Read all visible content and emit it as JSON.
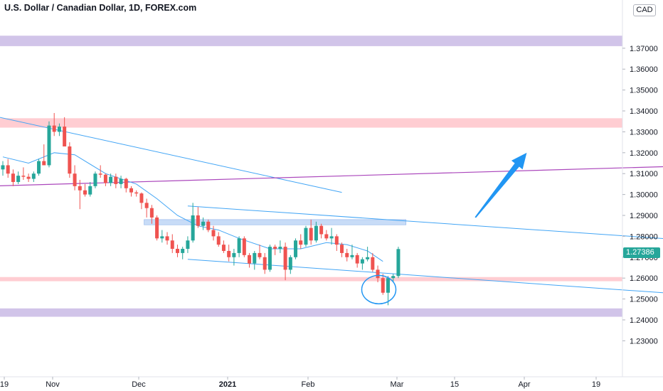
{
  "header": {
    "title": "U.S. Dollar / Canadian Dollar, 1D, FOREX.com"
  },
  "currency_badge": "CAD",
  "last_price_label": "1.27386",
  "colors": {
    "up": "#26a69a",
    "down": "#ef5350",
    "purple_zone": "#d1c4e9",
    "red_zone": "#ffcdd2",
    "blue_zone": "#c8dcf7",
    "trendline": "#42a5f5",
    "purple_line": "#ab47bc",
    "arrow": "#2196f3"
  },
  "chart_data": {
    "type": "candlestick",
    "title": "U.S. Dollar / Canadian Dollar, 1D, FOREX.com",
    "y_ticks": [
      "1.37000",
      "1.36000",
      "1.35000",
      "1.34000",
      "1.33000",
      "1.32000",
      "1.31000",
      "1.30000",
      "1.29000",
      "1.28000",
      "1.27000",
      "1.26000",
      "1.25000",
      "1.24000",
      "1.23000"
    ],
    "x_ticks": [
      {
        "label": "19",
        "bold": false
      },
      {
        "label": "Nov",
        "bold": false
      },
      {
        "label": "Dec",
        "bold": false
      },
      {
        "label": "2021",
        "bold": true
      },
      {
        "label": "Feb",
        "bold": false
      },
      {
        "label": "Mar",
        "bold": false
      },
      {
        "label": "15",
        "bold": false
      },
      {
        "label": "Apr",
        "bold": false
      },
      {
        "label": "19",
        "bold": false
      }
    ],
    "ylim": [
      1.224,
      1.3873
    ],
    "last_price": 1.27386,
    "zones": [
      {
        "kind": "purple",
        "from": 1.371,
        "to": 1.376
      },
      {
        "kind": "red",
        "from": 1.332,
        "to": 1.3365
      },
      {
        "kind": "blue",
        "from": 1.2855,
        "to": 1.288
      },
      {
        "kind": "red",
        "from": 1.2585,
        "to": 1.2605
      },
      {
        "kind": "purple",
        "from": 1.2415,
        "to": 1.2455
      }
    ],
    "candles": [
      [
        1.312,
        1.316,
        1.309,
        1.314
      ],
      [
        1.314,
        1.317,
        1.308,
        1.31
      ],
      [
        1.31,
        1.312,
        1.304,
        1.306
      ],
      [
        1.306,
        1.311,
        1.305,
        1.309
      ],
      [
        1.309,
        1.313,
        1.307,
        1.3085
      ],
      [
        1.3085,
        1.31,
        1.306,
        1.3075
      ],
      [
        1.3075,
        1.311,
        1.306,
        1.31
      ],
      [
        1.31,
        1.317,
        1.309,
        1.316
      ],
      [
        1.316,
        1.324,
        1.315,
        1.314
      ],
      [
        1.314,
        1.335,
        1.313,
        1.333
      ],
      [
        1.333,
        1.339,
        1.328,
        1.33
      ],
      [
        1.33,
        1.334,
        1.328,
        1.3325
      ],
      [
        1.3325,
        1.337,
        1.323,
        1.323
      ],
      [
        1.323,
        1.325,
        1.308,
        1.31
      ],
      [
        1.31,
        1.314,
        1.302,
        1.304
      ],
      [
        1.304,
        1.307,
        1.293,
        1.302
      ],
      [
        1.302,
        1.305,
        1.299,
        1.3
      ],
      [
        1.3,
        1.306,
        1.299,
        1.304
      ],
      [
        1.304,
        1.311,
        1.303,
        1.31
      ],
      [
        1.31,
        1.314,
        1.308,
        1.3095
      ],
      [
        1.3095,
        1.31,
        1.304,
        1.3055
      ],
      [
        1.3055,
        1.31,
        1.304,
        1.3085
      ],
      [
        1.3085,
        1.31,
        1.303,
        1.305
      ],
      [
        1.305,
        1.309,
        1.303,
        1.3075
      ],
      [
        1.3075,
        1.308,
        1.301,
        1.303
      ],
      [
        1.303,
        1.304,
        1.299,
        1.301
      ],
      [
        1.301,
        1.302,
        1.299,
        1.3005
      ],
      [
        1.3005,
        1.301,
        1.293,
        1.296
      ],
      [
        1.296,
        1.298,
        1.289,
        1.2935
      ],
      [
        1.2935,
        1.295,
        1.286,
        1.289
      ],
      [
        1.289,
        1.29,
        1.278,
        1.279
      ],
      [
        1.279,
        1.283,
        1.277,
        1.28
      ],
      [
        1.28,
        1.282,
        1.276,
        1.278
      ],
      [
        1.278,
        1.281,
        1.272,
        1.274
      ],
      [
        1.274,
        1.276,
        1.27,
        1.272
      ],
      [
        1.272,
        1.275,
        1.269,
        1.274
      ],
      [
        1.274,
        1.28,
        1.272,
        1.278
      ],
      [
        1.278,
        1.296,
        1.277,
        1.29
      ],
      [
        1.29,
        1.294,
        1.284,
        1.285
      ],
      [
        1.285,
        1.289,
        1.283,
        1.287
      ],
      [
        1.287,
        1.288,
        1.282,
        1.283
      ],
      [
        1.283,
        1.285,
        1.278,
        1.28
      ],
      [
        1.28,
        1.282,
        1.275,
        1.276
      ],
      [
        1.276,
        1.278,
        1.272,
        1.273
      ],
      [
        1.273,
        1.276,
        1.268,
        1.27
      ],
      [
        1.27,
        1.274,
        1.266,
        1.272
      ],
      [
        1.272,
        1.28,
        1.27,
        1.279
      ],
      [
        1.279,
        1.28,
        1.27,
        1.271
      ],
      [
        1.271,
        1.272,
        1.265,
        1.267
      ],
      [
        1.267,
        1.273,
        1.264,
        1.272
      ],
      [
        1.272,
        1.276,
        1.269,
        1.27
      ],
      [
        1.27,
        1.272,
        1.262,
        1.264
      ],
      [
        1.264,
        1.276,
        1.263,
        1.275
      ],
      [
        1.275,
        1.276,
        1.271,
        1.274
      ],
      [
        1.274,
        1.278,
        1.272,
        1.275
      ],
      [
        1.275,
        1.277,
        1.259,
        1.264
      ],
      [
        1.264,
        1.271,
        1.262,
        1.27
      ],
      [
        1.27,
        1.279,
        1.269,
        1.278
      ],
      [
        1.278,
        1.281,
        1.274,
        1.276
      ],
      [
        1.276,
        1.285,
        1.275,
        1.284
      ],
      [
        1.284,
        1.288,
        1.276,
        1.278
      ],
      [
        1.278,
        1.287,
        1.277,
        1.285
      ],
      [
        1.285,
        1.286,
        1.279,
        1.281
      ],
      [
        1.281,
        1.283,
        1.278,
        1.279
      ],
      [
        1.279,
        1.284,
        1.276,
        1.28
      ],
      [
        1.28,
        1.281,
        1.273,
        1.276
      ],
      [
        1.276,
        1.277,
        1.27,
        1.272
      ],
      [
        1.272,
        1.274,
        1.268,
        1.27
      ],
      [
        1.27,
        1.276,
        1.269,
        1.271
      ],
      [
        1.271,
        1.272,
        1.265,
        1.267
      ],
      [
        1.267,
        1.27,
        1.264,
        1.269
      ],
      [
        1.269,
        1.275,
        1.268,
        1.27
      ],
      [
        1.27,
        1.272,
        1.263,
        1.264
      ],
      [
        1.264,
        1.266,
        1.258,
        1.26
      ],
      [
        1.26,
        1.262,
        1.252,
        1.253
      ],
      [
        1.253,
        1.261,
        1.247,
        1.26
      ],
      [
        1.26,
        1.262,
        1.258,
        1.261
      ],
      [
        1.261,
        1.275,
        1.26,
        1.2739
      ]
    ],
    "moving_average": {
      "points": [
        [
          0,
          1.318
        ],
        [
          5,
          1.315
        ],
        [
          10,
          1.32
        ],
        [
          14,
          1.319
        ],
        [
          20,
          1.31
        ],
        [
          26,
          1.305
        ],
        [
          30,
          1.298
        ],
        [
          34,
          1.29
        ],
        [
          38,
          1.285
        ],
        [
          42,
          1.283
        ],
        [
          46,
          1.279
        ],
        [
          52,
          1.274
        ],
        [
          58,
          1.274
        ],
        [
          63,
          1.277
        ],
        [
          67,
          1.276
        ],
        [
          71,
          1.273
        ],
        [
          74,
          1.268
        ]
      ]
    },
    "drawings": {
      "upper_trendline": [
        [
          -10,
          1.342
        ],
        [
          66,
          1.301
        ]
      ],
      "purple_line": [
        [
          -10,
          1.3035
        ],
        [
          230,
          1.3205
        ]
      ],
      "channel_top": [
        [
          36,
          1.2945
        ],
        [
          140,
          1.277
        ]
      ],
      "channel_bottom": [
        [
          36,
          1.269
        ],
        [
          140,
          1.251
        ]
      ],
      "arrow": {
        "from": [
          92,
          1.289
        ],
        "to": [
          102,
          1.32
        ]
      }
    }
  }
}
